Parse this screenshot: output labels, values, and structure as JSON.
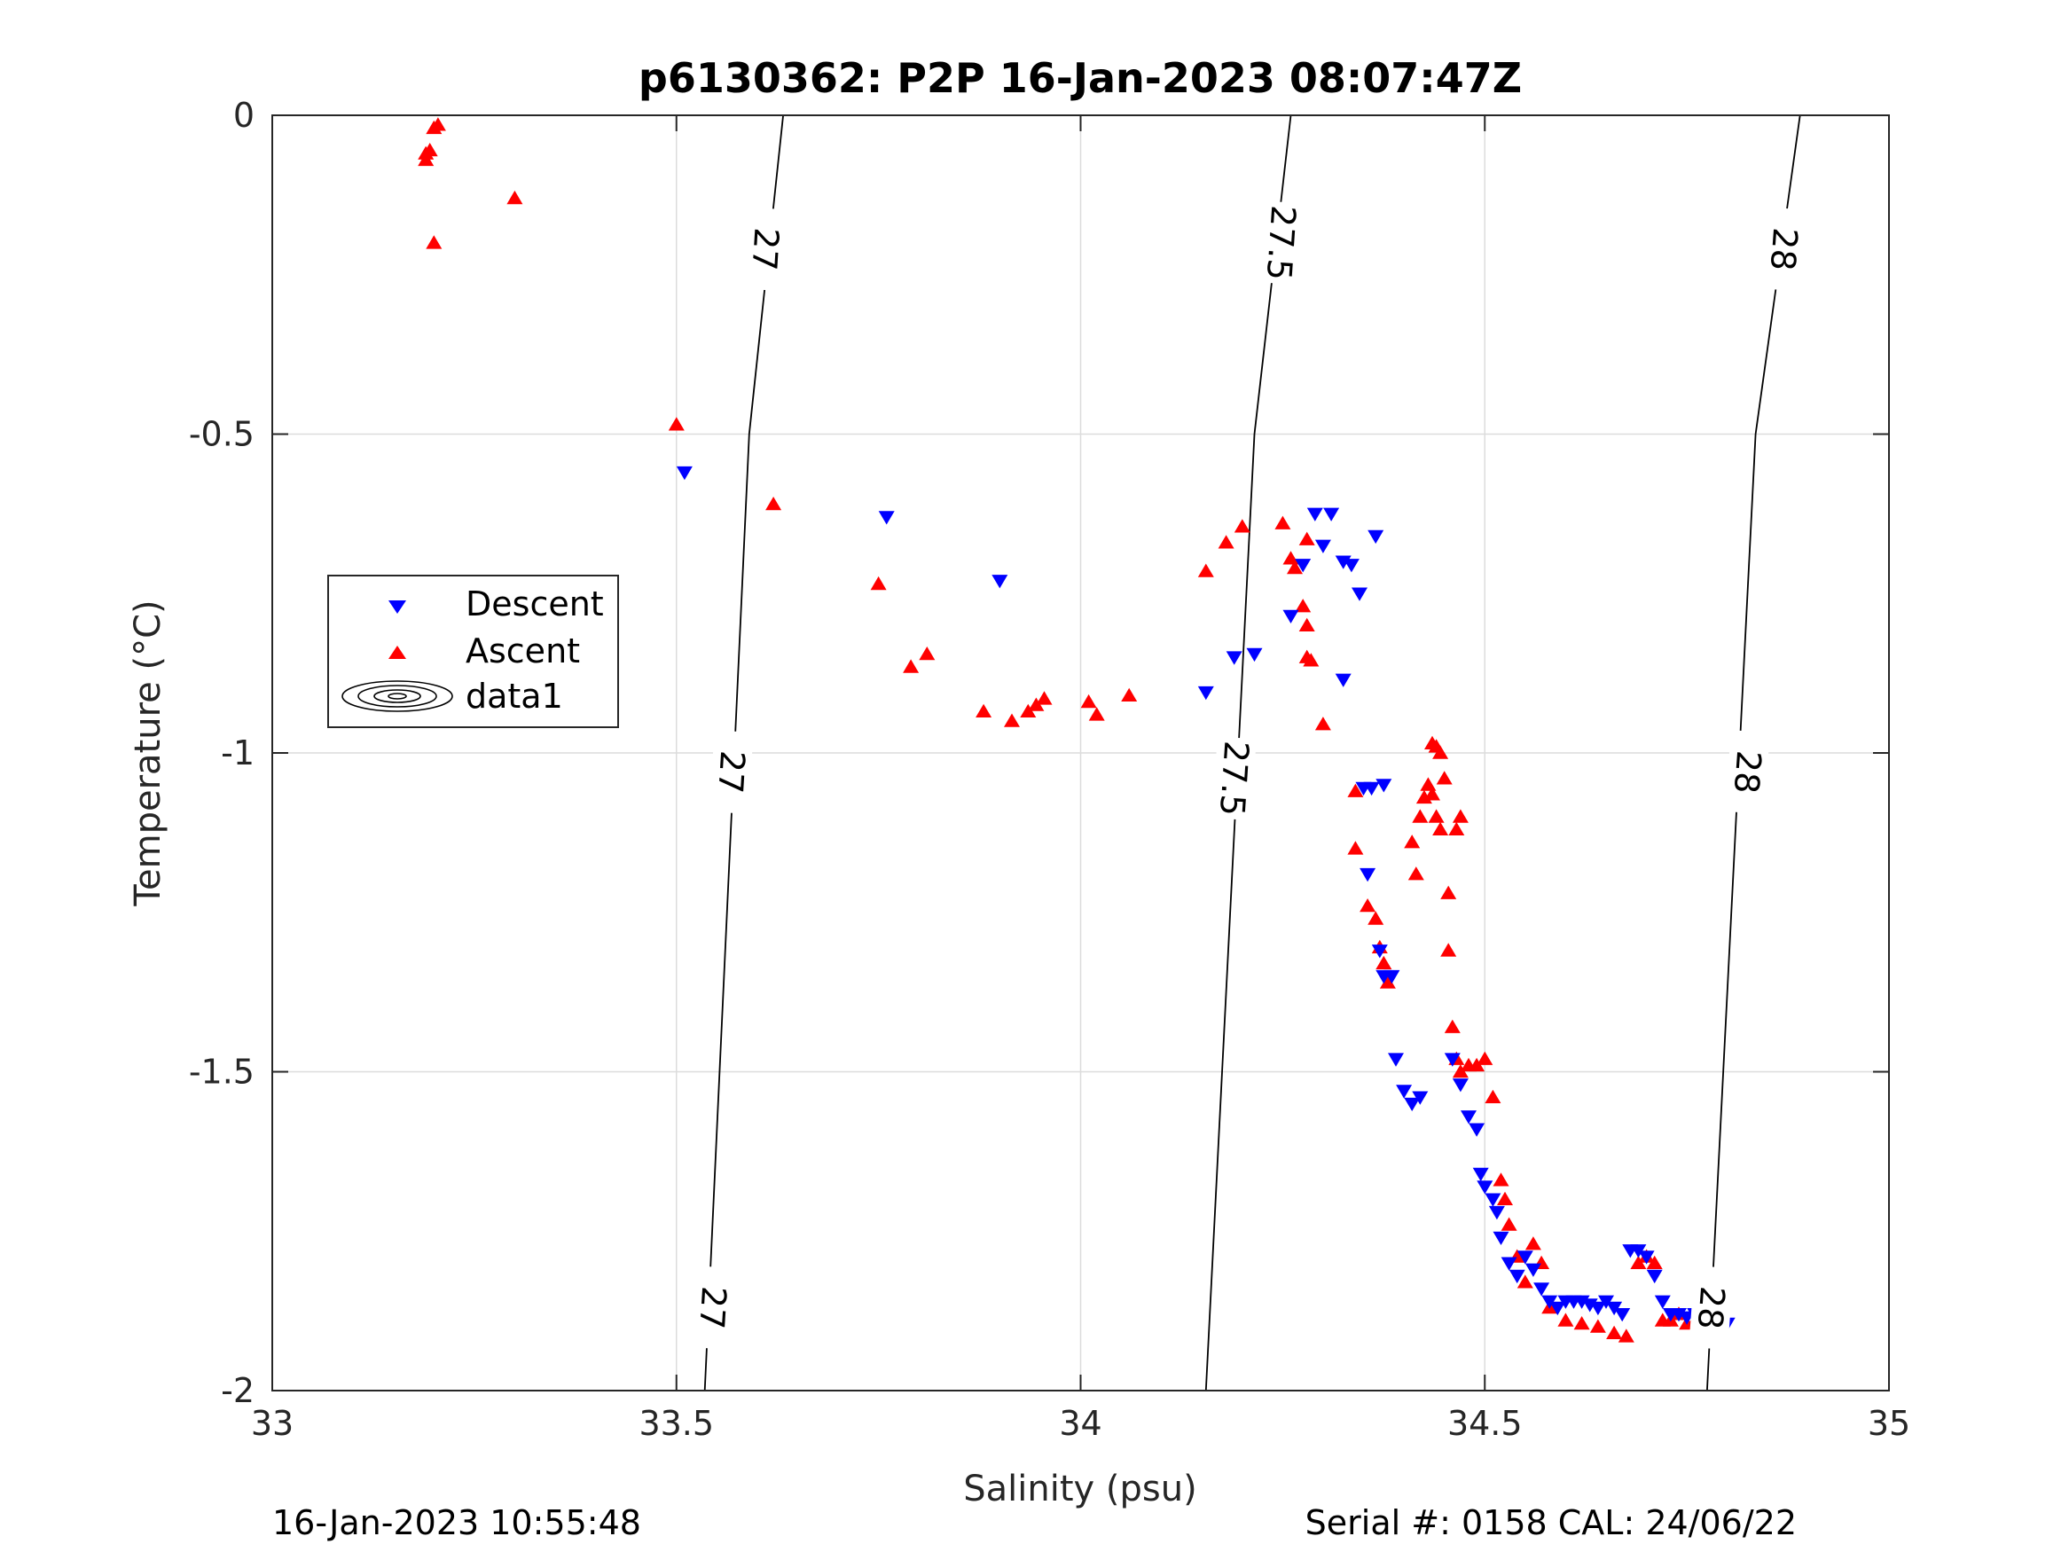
{
  "chart_data": {
    "type": "scatter",
    "title": "p6130362: P2P 16-Jan-2023 08:07:47Z",
    "xlabel": "Salinity (psu)",
    "ylabel": "Temperature (°C)",
    "xlim": [
      33,
      35
    ],
    "ylim": [
      -2,
      0
    ],
    "xticks": [
      33,
      33.5,
      34,
      34.5,
      35
    ],
    "xtick_labels": [
      "33",
      "33.5",
      "34",
      "34.5",
      "35"
    ],
    "yticks": [
      0,
      -0.5,
      -1,
      -1.5,
      -2
    ],
    "ytick_labels": [
      "0",
      "-0.5",
      "-1",
      "-1.5",
      "-2"
    ],
    "grid": true,
    "legend_position": "left-middle",
    "legend": [
      "Descent",
      "Ascent",
      "data1"
    ],
    "colors": {
      "descent": "#0000ff",
      "ascent": "#ff0000",
      "contour": "#000000",
      "grid": "#dcdcdc",
      "axis": "#262626"
    },
    "series": [
      {
        "name": "Descent",
        "marker": "triangle-down",
        "points": [
          [
            33.51,
            -0.56
          ],
          [
            33.76,
            -0.63
          ],
          [
            33.9,
            -0.73
          ],
          [
            34.155,
            -0.905
          ],
          [
            34.19,
            -0.85
          ],
          [
            34.215,
            -0.845
          ],
          [
            34.26,
            -0.785
          ],
          [
            34.275,
            -0.705
          ],
          [
            34.29,
            -0.625
          ],
          [
            34.3,
            -0.675
          ],
          [
            34.31,
            -0.625
          ],
          [
            34.325,
            -0.885
          ],
          [
            34.325,
            -0.7
          ],
          [
            34.335,
            -0.705
          ],
          [
            34.345,
            -0.75
          ],
          [
            34.365,
            -0.66
          ],
          [
            34.36,
            -1.055
          ],
          [
            34.35,
            -1.055
          ],
          [
            34.375,
            -1.05
          ],
          [
            34.355,
            -1.19
          ],
          [
            34.37,
            -1.31
          ],
          [
            34.375,
            -1.35
          ],
          [
            34.385,
            -1.35
          ],
          [
            34.39,
            -1.48
          ],
          [
            34.4,
            -1.53
          ],
          [
            34.41,
            -1.55
          ],
          [
            34.42,
            -1.54
          ],
          [
            34.46,
            -1.48
          ],
          [
            34.47,
            -1.52
          ],
          [
            34.48,
            -1.57
          ],
          [
            34.49,
            -1.59
          ],
          [
            34.495,
            -1.66
          ],
          [
            34.5,
            -1.68
          ],
          [
            34.51,
            -1.7
          ],
          [
            34.515,
            -1.72
          ],
          [
            34.52,
            -1.76
          ],
          [
            34.53,
            -1.8
          ],
          [
            34.54,
            -1.82
          ],
          [
            34.55,
            -1.79
          ],
          [
            34.56,
            -1.81
          ],
          [
            34.57,
            -1.84
          ],
          [
            34.58,
            -1.86
          ],
          [
            34.59,
            -1.87
          ],
          [
            34.6,
            -1.86
          ],
          [
            34.61,
            -1.86
          ],
          [
            34.62,
            -1.86
          ],
          [
            34.63,
            -1.865
          ],
          [
            34.64,
            -1.87
          ],
          [
            34.65,
            -1.86
          ],
          [
            34.66,
            -1.87
          ],
          [
            34.67,
            -1.88
          ],
          [
            34.68,
            -1.78
          ],
          [
            34.69,
            -1.78
          ],
          [
            34.7,
            -1.79
          ],
          [
            34.71,
            -1.82
          ],
          [
            34.72,
            -1.86
          ],
          [
            34.73,
            -1.88
          ],
          [
            34.74,
            -1.88
          ],
          [
            34.75,
            -1.885
          ],
          [
            34.76,
            -1.88
          ],
          [
            34.77,
            -1.89
          ],
          [
            34.78,
            -1.89
          ],
          [
            34.79,
            -1.895
          ],
          [
            34.8,
            -1.895
          ]
        ]
      },
      {
        "name": "Ascent",
        "marker": "triangle-up",
        "points": [
          [
            33.19,
            -0.06
          ],
          [
            33.19,
            -0.07
          ],
          [
            33.2,
            -0.02
          ],
          [
            33.205,
            -0.015
          ],
          [
            33.195,
            -0.055
          ],
          [
            33.2,
            -0.2
          ],
          [
            33.3,
            -0.13
          ],
          [
            33.5,
            -0.485
          ],
          [
            33.62,
            -0.61
          ],
          [
            33.75,
            -0.735
          ],
          [
            33.79,
            -0.865
          ],
          [
            33.81,
            -0.845
          ],
          [
            33.88,
            -0.935
          ],
          [
            33.915,
            -0.95
          ],
          [
            33.935,
            -0.935
          ],
          [
            33.945,
            -0.925
          ],
          [
            33.955,
            -0.915
          ],
          [
            34.01,
            -0.92
          ],
          [
            34.02,
            -0.94
          ],
          [
            34.06,
            -0.91
          ],
          [
            34.155,
            -0.715
          ],
          [
            34.18,
            -0.67
          ],
          [
            34.2,
            -0.645
          ],
          [
            34.25,
            -0.64
          ],
          [
            34.26,
            -0.695
          ],
          [
            34.265,
            -0.71
          ],
          [
            34.275,
            -0.77
          ],
          [
            34.28,
            -0.8
          ],
          [
            34.28,
            -0.85
          ],
          [
            34.285,
            -0.855
          ],
          [
            34.28,
            -0.665
          ],
          [
            34.3,
            -0.955
          ],
          [
            34.34,
            -1.06
          ],
          [
            34.34,
            -1.15
          ],
          [
            34.355,
            -1.24
          ],
          [
            34.365,
            -1.26
          ],
          [
            34.37,
            -1.305
          ],
          [
            34.375,
            -1.33
          ],
          [
            34.38,
            -1.36
          ],
          [
            34.41,
            -1.14
          ],
          [
            34.415,
            -1.19
          ],
          [
            34.42,
            -1.1
          ],
          [
            34.425,
            -1.07
          ],
          [
            34.43,
            -1.05
          ],
          [
            34.435,
            -1.065
          ],
          [
            34.435,
            -0.985
          ],
          [
            34.44,
            -0.99
          ],
          [
            34.44,
            -1.1
          ],
          [
            34.445,
            -1.0
          ],
          [
            34.445,
            -1.12
          ],
          [
            34.45,
            -1.04
          ],
          [
            34.455,
            -1.22
          ],
          [
            34.455,
            -1.31
          ],
          [
            34.46,
            -1.43
          ],
          [
            34.465,
            -1.48
          ],
          [
            34.47,
            -1.5
          ],
          [
            34.48,
            -1.49
          ],
          [
            34.49,
            -1.49
          ],
          [
            34.5,
            -1.48
          ],
          [
            34.51,
            -1.54
          ],
          [
            34.52,
            -1.67
          ],
          [
            34.525,
            -1.7
          ],
          [
            34.53,
            -1.74
          ],
          [
            34.54,
            -1.79
          ],
          [
            34.55,
            -1.83
          ],
          [
            34.56,
            -1.77
          ],
          [
            34.57,
            -1.8
          ],
          [
            34.58,
            -1.87
          ],
          [
            34.6,
            -1.89
          ],
          [
            34.62,
            -1.895
          ],
          [
            34.64,
            -1.9
          ],
          [
            34.66,
            -1.91
          ],
          [
            34.675,
            -1.915
          ],
          [
            34.69,
            -1.8
          ],
          [
            34.7,
            -1.79
          ],
          [
            34.71,
            -1.8
          ],
          [
            34.72,
            -1.89
          ],
          [
            34.73,
            -1.89
          ],
          [
            34.74,
            -1.88
          ],
          [
            34.75,
            -1.895
          ],
          [
            34.76,
            -1.89
          ],
          [
            34.775,
            -1.9
          ],
          [
            34.79,
            -1.89
          ],
          [
            34.465,
            -1.12
          ],
          [
            34.47,
            -1.1
          ]
        ]
      }
    ],
    "contours": [
      {
        "value": "27",
        "points": [
          [
            33.535,
            -2.0
          ],
          [
            33.59,
            -0.5
          ],
          [
            33.632,
            0.0
          ]
        ],
        "labels": [
          [
            33.545,
            -1.87
          ],
          [
            33.568,
            -1.03
          ],
          [
            33.61,
            -0.21
          ]
        ]
      },
      {
        "value": "27.5",
        "points": [
          [
            34.155,
            -2.0
          ],
          [
            34.215,
            -0.5
          ],
          [
            34.26,
            0.0
          ]
        ],
        "labels": [
          [
            34.19,
            -1.04
          ],
          [
            34.248,
            -0.2
          ]
        ]
      },
      {
        "value": "28",
        "points": [
          [
            34.775,
            -2.0
          ],
          [
            34.835,
            -0.5
          ],
          [
            34.89,
            0.0
          ]
        ],
        "labels": [
          [
            34.78,
            -1.87
          ],
          [
            34.825,
            -1.03
          ],
          [
            34.87,
            -0.21
          ]
        ]
      }
    ]
  },
  "legend": {
    "descent_label": "Descent",
    "ascent_label": "Ascent",
    "data1_label": "data1"
  },
  "footer": {
    "left_timestamp": "16-Jan-2023 10:55:48",
    "right_info": "Serial #: 0158  CAL: 24/06/22"
  }
}
